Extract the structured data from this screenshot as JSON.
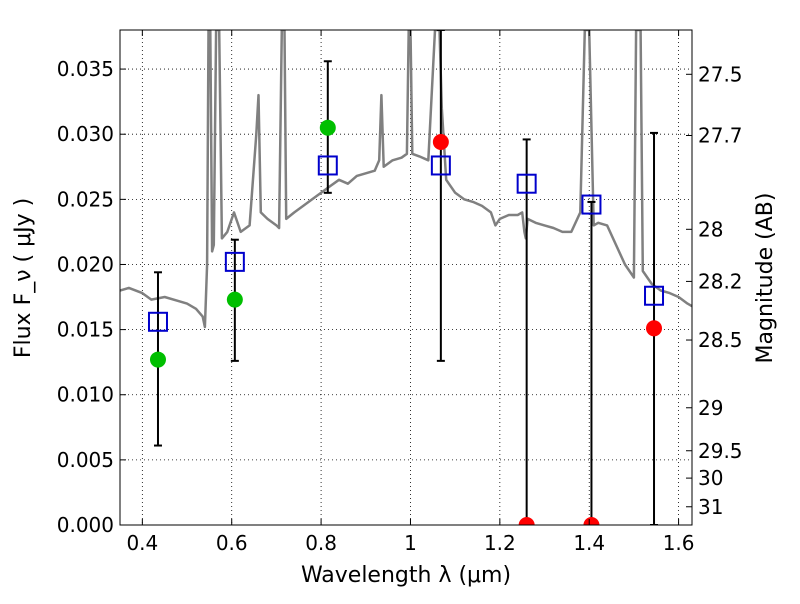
{
  "chart_data": {
    "type": "scatter",
    "xlabel": "Wavelength  λ (μm)",
    "ylabel": "Flux  F_ν  ( μJy )",
    "y2label": "Magnitude (AB)",
    "xlim": [
      0.35,
      1.63
    ],
    "ylim": [
      0.0,
      0.038
    ],
    "grid": true,
    "xticks": [
      0.4,
      0.6,
      0.8,
      1.0,
      1.2,
      1.4,
      1.6
    ],
    "xtick_labels": [
      "0.4",
      "0.6",
      "0.8",
      "1",
      "1.2",
      "1.4",
      "1.6"
    ],
    "yticks": [
      0.0,
      0.005,
      0.01,
      0.015,
      0.02,
      0.025,
      0.03,
      0.035
    ],
    "ytick_labels": [
      "0.000",
      "0.005",
      "0.010",
      "0.015",
      "0.020",
      "0.025",
      "0.030",
      "0.035"
    ],
    "right_axis_ticks": [
      {
        "label": "27.5",
        "flux": 0.0346
      },
      {
        "label": "27.7",
        "flux": 0.0299
      },
      {
        "label": "28",
        "flux": 0.0227
      },
      {
        "label": "28.2",
        "flux": 0.0187
      },
      {
        "label": "28.5",
        "flux": 0.0142
      },
      {
        "label": "29",
        "flux": 0.009
      },
      {
        "label": "29.5",
        "flux": 0.0057
      },
      {
        "label": "30",
        "flux": 0.0036
      },
      {
        "label": "31",
        "flux": 0.0014
      }
    ],
    "series": [
      {
        "kind": "model-spectrum",
        "color": "#808080",
        "points": [
          [
            0.35,
            0.018
          ],
          [
            0.37,
            0.0182
          ],
          [
            0.4,
            0.0178
          ],
          [
            0.42,
            0.0173
          ],
          [
            0.45,
            0.0175
          ],
          [
            0.48,
            0.0172
          ],
          [
            0.5,
            0.017
          ],
          [
            0.52,
            0.0166
          ],
          [
            0.535,
            0.016
          ],
          [
            0.54,
            0.0152
          ],
          [
            0.545,
            0.02
          ],
          [
            0.548,
            0.038
          ],
          [
            0.552,
            0.038
          ],
          [
            0.556,
            0.021
          ],
          [
            0.56,
            0.0215
          ],
          [
            0.565,
            0.038
          ],
          [
            0.572,
            0.038
          ],
          [
            0.578,
            0.022
          ],
          [
            0.59,
            0.0225
          ],
          [
            0.605,
            0.024
          ],
          [
            0.62,
            0.0225
          ],
          [
            0.64,
            0.023
          ],
          [
            0.655,
            0.03
          ],
          [
            0.66,
            0.033
          ],
          [
            0.665,
            0.024
          ],
          [
            0.68,
            0.0235
          ],
          [
            0.7,
            0.023
          ],
          [
            0.706,
            0.0228
          ],
          [
            0.712,
            0.038
          ],
          [
            0.718,
            0.038
          ],
          [
            0.722,
            0.0235
          ],
          [
            0.74,
            0.024
          ],
          [
            0.76,
            0.0245
          ],
          [
            0.78,
            0.025
          ],
          [
            0.8,
            0.0255
          ],
          [
            0.82,
            0.026
          ],
          [
            0.84,
            0.0265
          ],
          [
            0.86,
            0.0262
          ],
          [
            0.88,
            0.0268
          ],
          [
            0.9,
            0.027
          ],
          [
            0.92,
            0.0272
          ],
          [
            0.93,
            0.028
          ],
          [
            0.935,
            0.033
          ],
          [
            0.94,
            0.0275
          ],
          [
            0.96,
            0.028
          ],
          [
            0.98,
            0.0282
          ],
          [
            0.992,
            0.0285
          ],
          [
            0.996,
            0.038
          ],
          [
            1.0,
            0.038
          ],
          [
            1.004,
            0.0285
          ],
          [
            1.02,
            0.0283
          ],
          [
            1.04,
            0.028
          ],
          [
            1.055,
            0.038
          ],
          [
            1.065,
            0.038
          ],
          [
            1.07,
            0.032
          ],
          [
            1.08,
            0.0265
          ],
          [
            1.1,
            0.0255
          ],
          [
            1.12,
            0.025
          ],
          [
            1.14,
            0.0248
          ],
          [
            1.16,
            0.0245
          ],
          [
            1.18,
            0.024
          ],
          [
            1.19,
            0.023
          ],
          [
            1.2,
            0.0235
          ],
          [
            1.22,
            0.0238
          ],
          [
            1.24,
            0.0238
          ],
          [
            1.25,
            0.024
          ],
          [
            1.255,
            0.0225
          ],
          [
            1.258,
            0.022
          ],
          [
            1.262,
            0.0235
          ],
          [
            1.28,
            0.0232
          ],
          [
            1.3,
            0.023
          ],
          [
            1.32,
            0.0228
          ],
          [
            1.34,
            0.0225
          ],
          [
            1.36,
            0.0225
          ],
          [
            1.38,
            0.024
          ],
          [
            1.39,
            0.038
          ],
          [
            1.4,
            0.038
          ],
          [
            1.41,
            0.023
          ],
          [
            1.42,
            0.0232
          ],
          [
            1.44,
            0.023
          ],
          [
            1.46,
            0.0215
          ],
          [
            1.48,
            0.02
          ],
          [
            1.5,
            0.019
          ],
          [
            1.505,
            0.038
          ],
          [
            1.515,
            0.038
          ],
          [
            1.52,
            0.0195
          ],
          [
            1.54,
            0.0185
          ],
          [
            1.56,
            0.018
          ],
          [
            1.58,
            0.0178
          ],
          [
            1.6,
            0.0175
          ],
          [
            1.62,
            0.017
          ],
          [
            1.63,
            0.0168
          ]
        ]
      },
      {
        "kind": "observed-flux",
        "marker": "circle",
        "points": [
          {
            "x": 0.435,
            "y": 0.0127,
            "color": "#00bf00"
          },
          {
            "x": 0.607,
            "y": 0.0173,
            "color": "#00bf00"
          },
          {
            "x": 0.815,
            "y": 0.0305,
            "color": "#00bf00"
          },
          {
            "x": 1.068,
            "y": 0.0294,
            "color": "#ff0000"
          },
          {
            "x": 1.26,
            "y": 0.0,
            "color": "#ff0000"
          },
          {
            "x": 1.405,
            "y": 0.0,
            "color": "#ff0000"
          },
          {
            "x": 1.545,
            "y": 0.0151,
            "color": "#ff0000"
          }
        ]
      },
      {
        "kind": "error-bars",
        "color": "#000000",
        "bars": [
          {
            "x": 0.435,
            "low": 0.0061,
            "high": 0.0194
          },
          {
            "x": 0.607,
            "low": 0.0126,
            "high": 0.0219
          },
          {
            "x": 0.815,
            "low": 0.0255,
            "high": 0.0356
          },
          {
            "x": 1.068,
            "low": 0.0126,
            "high": 0.038
          },
          {
            "x": 1.26,
            "low": 0.0,
            "high": 0.0296
          },
          {
            "x": 1.405,
            "low": 0.0,
            "high": 0.0248
          },
          {
            "x": 1.545,
            "low": 0.0,
            "high": 0.0301
          }
        ]
      },
      {
        "kind": "model-flux",
        "marker": "open-square",
        "color": "#0000cc",
        "points": [
          {
            "x": 0.435,
            "y": 0.0156
          },
          {
            "x": 0.607,
            "y": 0.0202
          },
          {
            "x": 0.815,
            "y": 0.0276
          },
          {
            "x": 1.068,
            "y": 0.0276
          },
          {
            "x": 1.26,
            "y": 0.0262
          },
          {
            "x": 1.405,
            "y": 0.0246
          },
          {
            "x": 1.545,
            "y": 0.0176
          }
        ]
      }
    ]
  }
}
